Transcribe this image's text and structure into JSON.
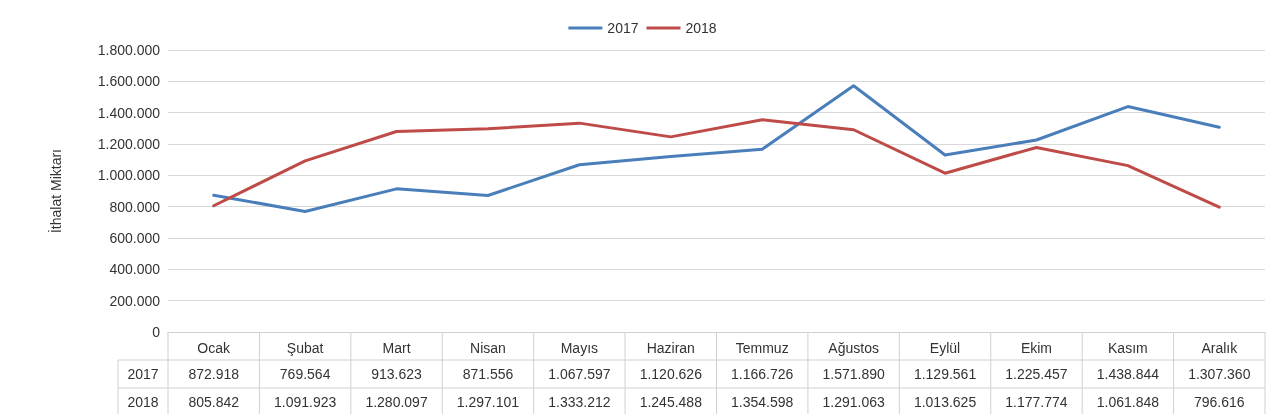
{
  "chart_data": {
    "type": "line",
    "ylabel": "İthalat Miktarı",
    "categories": [
      "Ocak",
      "Şubat",
      "Mart",
      "Nisan",
      "Mayıs",
      "Haziran",
      "Temmuz",
      "Ağustos",
      "Eylül",
      "Ekim",
      "Kasım",
      "Aralık"
    ],
    "series": [
      {
        "name": "2017",
        "color": "#4a7ebb",
        "values": [
          872918,
          769564,
          913623,
          871556,
          1067597,
          1120626,
          1166726,
          1571890,
          1129561,
          1225457,
          1438844,
          1307360
        ],
        "value_labels": [
          "872.918",
          "769.564",
          "913.623",
          "871.556",
          "1.067.597",
          "1.120.626",
          "1.166.726",
          "1.571.890",
          "1.129.561",
          "1.225.457",
          "1.438.844",
          "1.307.360"
        ]
      },
      {
        "name": "2018",
        "color": "#be4b48",
        "values": [
          805842,
          1091923,
          1280097,
          1297101,
          1333212,
          1245488,
          1354598,
          1291063,
          1013625,
          1177774,
          1061848,
          796616
        ],
        "value_labels": [
          "805.842",
          "1.091.923",
          "1.280.097",
          "1.297.101",
          "1.333.212",
          "1.245.488",
          "1.354.598",
          "1.291.063",
          "1.013.625",
          "1.177.774",
          "1.061.848",
          "796.616"
        ]
      }
    ],
    "ylim": [
      0,
      1800000
    ],
    "yticks": [
      0,
      {
        "value": 200000,
        "label": "200.000"
      },
      {
        "value": 400000,
        "label": "400.000"
      },
      {
        "value": 600000,
        "label": "600.000"
      },
      {
        "value": 800000,
        "label": "800.000"
      },
      {
        "value": 1000000,
        "label": "1.000.000"
      },
      {
        "value": 1200000,
        "label": "1.200.000"
      },
      {
        "value": 1400000,
        "label": "1.400.000"
      },
      {
        "value": 1600000,
        "label": "1.600.000"
      },
      {
        "value": 1800000,
        "label": "1.800.000"
      }
    ],
    "grid": "y",
    "legend": "top",
    "marker": "none",
    "line_style": "solid"
  }
}
